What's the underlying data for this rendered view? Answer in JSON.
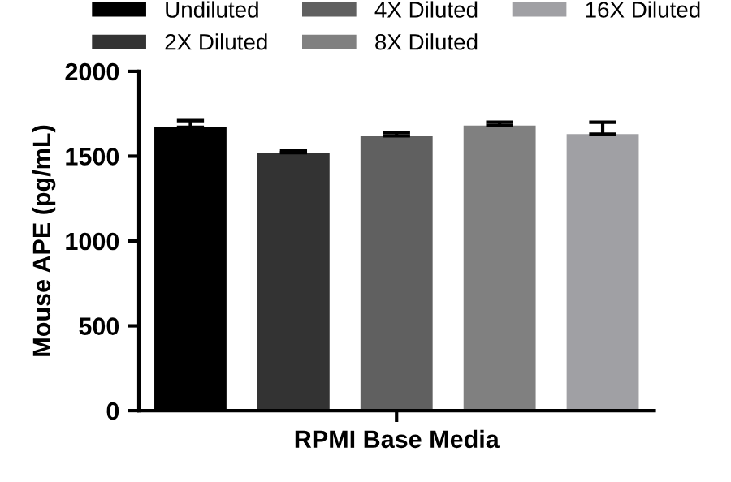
{
  "chart_data": {
    "type": "bar",
    "ylabel": "Mouse APE (pg/mL)",
    "categories": [
      "RPMI Base Media"
    ],
    "series": [
      {
        "name": "Undiluted",
        "color": "#000000",
        "values": [
          1670
        ],
        "errors": [
          [
            1670,
            1710
          ]
        ]
      },
      {
        "name": "2X Diluted",
        "color": "#333333",
        "values": [
          1520
        ],
        "errors": [
          [
            1520,
            1530
          ]
        ]
      },
      {
        "name": "4X Diluted",
        "color": "#606060",
        "values": [
          1620
        ],
        "errors": [
          [
            1620,
            1640
          ]
        ]
      },
      {
        "name": "8X Diluted",
        "color": "#808080",
        "values": [
          1680
        ],
        "errors": [
          [
            1680,
            1700
          ]
        ]
      },
      {
        "name": "16X Diluted",
        "color": "#a0a0a4",
        "values": [
          1630
        ],
        "errors": [
          [
            1630,
            1700
          ]
        ]
      }
    ],
    "ylim": [
      0,
      2000
    ],
    "yticks": [
      0,
      500,
      1000,
      1500,
      2000
    ],
    "grid": false,
    "legend": "top"
  }
}
